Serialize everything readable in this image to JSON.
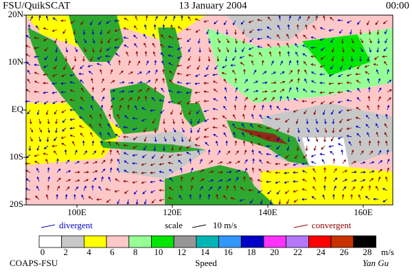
{
  "header": {
    "left": "FSU/QuikSCAT",
    "center": "13 January 2004",
    "right": "00:00"
  },
  "map": {
    "lat_labels": [
      "20N",
      "10N",
      "EQ",
      "10S",
      "20S"
    ],
    "lon_labels": [
      "100E",
      "120E",
      "140E",
      "160E"
    ]
  },
  "legend": {
    "divergent": "divergent",
    "scale": "scale",
    "scale_value": "10 m/s",
    "convergent": "convergent"
  },
  "colorbar": {
    "ticks": [
      0,
      2,
      4,
      6,
      8,
      10,
      12,
      14,
      16,
      18,
      20,
      22,
      24,
      26,
      28
    ],
    "unit": "m/s",
    "colors": [
      "#ffffff",
      "#c8c8c8",
      "#ffff00",
      "#ffc8c8",
      "#96ff96",
      "#00e600",
      "#969696",
      "#00b4b4",
      "#3296ff",
      "#0000c8",
      "#ff32ff",
      "#b478ff",
      "#ff0000",
      "#c83200",
      "#000000"
    ]
  },
  "footer": {
    "left": "COAPS-FSU",
    "center": "Speed",
    "right": "Yan Gu"
  }
}
